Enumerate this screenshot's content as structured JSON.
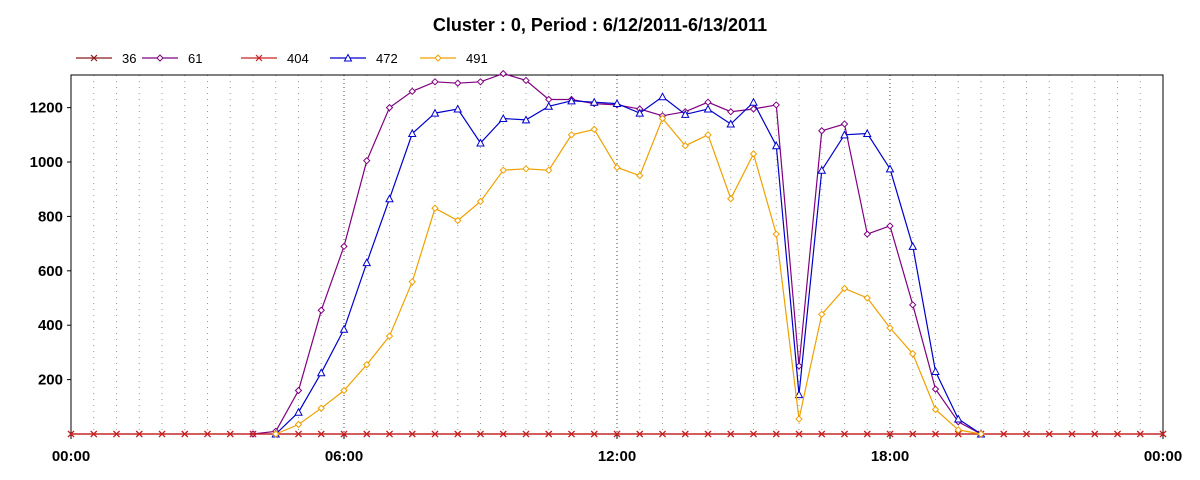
{
  "chart_data": {
    "type": "line",
    "title": "Cluster : 0, Period : 6/12/2011-6/13/2011",
    "xlabel": "",
    "ylabel": "",
    "x_tick_labels": [
      "00:00",
      "06:00",
      "12:00",
      "18:00",
      "00:00"
    ],
    "x_domain_hours": [
      0,
      24
    ],
    "y_ticks": [
      200,
      400,
      600,
      800,
      1000,
      1200
    ],
    "ylim": [
      0,
      1320
    ],
    "grid": "vertical dotted",
    "legend_position": "top-left",
    "series": [
      {
        "name": "36",
        "color": "#8b1a1a",
        "marker": "x",
        "x": [
          0,
          0.5,
          1,
          1.5,
          2,
          2.5,
          3,
          3.5,
          4,
          4.5,
          5,
          5.5,
          6,
          6.5,
          7,
          7.5,
          8,
          8.5,
          9,
          9.5,
          10,
          10.5,
          11,
          11.5,
          12,
          12.5,
          13,
          13.5,
          14,
          14.5,
          15,
          15.5,
          16,
          16.5,
          17,
          17.5,
          18,
          18.5,
          19,
          19.5,
          20,
          20.5,
          21,
          21.5,
          22,
          22.5,
          23,
          23.5,
          24
        ],
        "values": [
          0,
          0,
          0,
          0,
          0,
          0,
          0,
          0,
          0,
          0,
          0,
          0,
          0,
          0,
          0,
          0,
          0,
          0,
          0,
          0,
          0,
          0,
          0,
          0,
          0,
          0,
          0,
          0,
          0,
          0,
          0,
          0,
          0,
          0,
          0,
          0,
          0,
          0,
          0,
          0,
          0,
          0,
          0,
          0,
          0,
          0,
          0,
          0,
          0
        ]
      },
      {
        "name": "61",
        "color": "#800080",
        "marker": "diamond",
        "x": [
          4,
          4.5,
          5,
          5.5,
          6,
          6.5,
          7,
          7.5,
          8,
          8.5,
          9,
          9.5,
          10,
          10.5,
          11,
          11.5,
          12,
          12.5,
          13,
          13.5,
          14,
          14.5,
          15,
          15.5,
          16,
          16.5,
          17,
          17.5,
          18,
          18.5,
          19,
          19.5,
          20
        ],
        "values": [
          0,
          10,
          160,
          455,
          690,
          1005,
          1200,
          1260,
          1295,
          1290,
          1295,
          1325,
          1300,
          1230,
          1230,
          1215,
          1210,
          1195,
          1170,
          1185,
          1220,
          1185,
          1195,
          1210,
          250,
          1115,
          1140,
          735,
          765,
          475,
          165,
          45,
          0
        ]
      },
      {
        "name": "404",
        "color": "#cc2020",
        "marker": "x",
        "x": [
          0,
          0.5,
          1,
          1.5,
          2,
          2.5,
          3,
          3.5,
          4,
          4.5,
          5,
          5.5,
          6,
          6.5,
          7,
          7.5,
          8,
          8.5,
          9,
          9.5,
          10,
          10.5,
          11,
          11.5,
          12,
          12.5,
          13,
          13.5,
          14,
          14.5,
          15,
          15.5,
          16,
          16.5,
          17,
          17.5,
          18,
          18.5,
          19,
          19.5,
          20,
          20.5,
          21,
          21.5,
          22,
          22.5,
          23,
          23.5,
          24
        ],
        "values": [
          0,
          0,
          0,
          0,
          0,
          0,
          0,
          0,
          0,
          0,
          0,
          0,
          0,
          0,
          0,
          0,
          0,
          0,
          0,
          0,
          0,
          0,
          0,
          0,
          0,
          0,
          0,
          0,
          0,
          0,
          0,
          0,
          0,
          0,
          0,
          0,
          0,
          0,
          0,
          0,
          0,
          0,
          0,
          0,
          0,
          0,
          0,
          0,
          0
        ]
      },
      {
        "name": "472",
        "color": "#0000cc",
        "marker": "triangle",
        "x": [
          4.5,
          5,
          5.5,
          6,
          6.5,
          7,
          7.5,
          8,
          8.5,
          9,
          9.5,
          10,
          10.5,
          11,
          11.5,
          12,
          12.5,
          13,
          13.5,
          14,
          14.5,
          15,
          15.5,
          16,
          16.5,
          17,
          17.5,
          18,
          18.5,
          19,
          19.5,
          20
        ],
        "values": [
          0,
          80,
          225,
          385,
          630,
          865,
          1105,
          1180,
          1195,
          1070,
          1160,
          1155,
          1205,
          1225,
          1220,
          1215,
          1180,
          1240,
          1175,
          1195,
          1140,
          1220,
          1060,
          145,
          970,
          1100,
          1105,
          975,
          690,
          230,
          55,
          0
        ]
      },
      {
        "name": "491",
        "color": "#f0a000",
        "marker": "diamond",
        "x": [
          4.5,
          5,
          5.5,
          6,
          6.5,
          7,
          7.5,
          8,
          8.5,
          9,
          9.5,
          10,
          10.5,
          11,
          11.5,
          12,
          12.5,
          13,
          13.5,
          14,
          14.5,
          15,
          15.5,
          16,
          16.5,
          17,
          17.5,
          18,
          18.5,
          19,
          19.5,
          20
        ],
        "values": [
          0,
          35,
          95,
          160,
          255,
          360,
          560,
          830,
          785,
          855,
          970,
          975,
          970,
          1100,
          1120,
          980,
          950,
          1160,
          1060,
          1100,
          865,
          1030,
          735,
          55,
          440,
          535,
          500,
          390,
          295,
          90,
          15,
          0
        ]
      }
    ]
  }
}
